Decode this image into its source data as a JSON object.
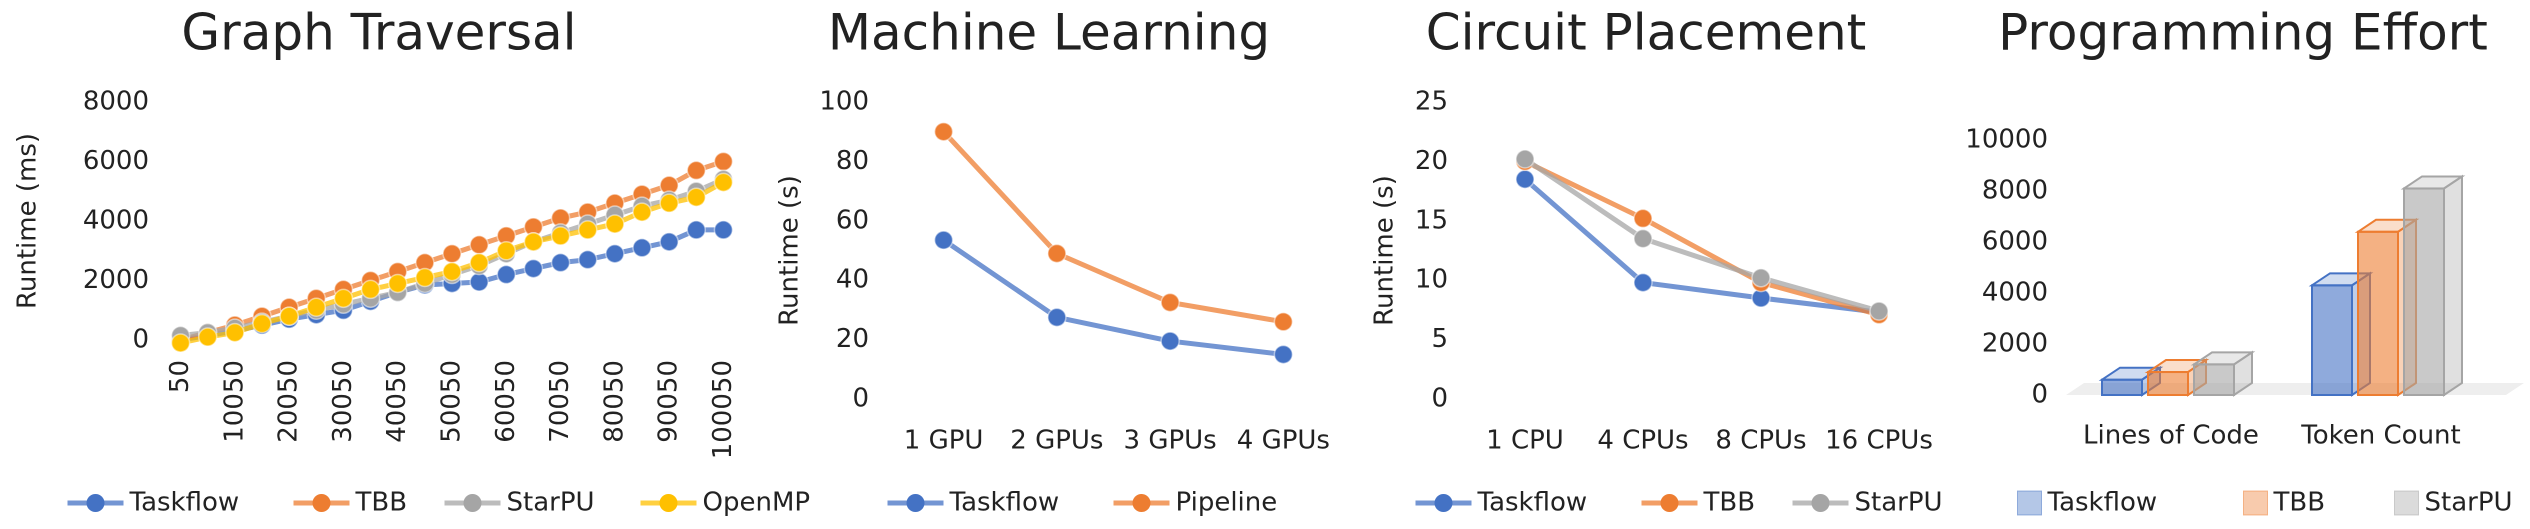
{
  "chart_data": [
    {
      "type": "line",
      "title": "Graph Traversal",
      "y_label": "Runtime (ms)",
      "categories": [
        "50",
        null,
        "10050",
        null,
        "20050",
        null,
        "30050",
        null,
        "40050",
        null,
        "50050",
        null,
        "60050",
        null,
        "70050",
        null,
        "80050",
        null,
        "90050",
        null,
        "100050"
      ],
      "series": [
        {
          "name": "Taskflow",
          "color": "#4472c4",
          "values": [
            0,
            150,
            300,
            500,
            700,
            850,
            1000,
            1300,
            1600,
            1850,
            1900,
            1950,
            2200,
            2400,
            2600,
            2700,
            2900,
            3100,
            3300,
            3700,
            3700
          ]
        },
        {
          "name": "TBB",
          "color": "#ed7d31",
          "values": [
            0,
            250,
            500,
            800,
            1100,
            1400,
            1700,
            2000,
            2300,
            2600,
            2900,
            3200,
            3500,
            3800,
            4100,
            4300,
            4600,
            4900,
            5200,
            5700,
            6000
          ]
        },
        {
          "name": "StarPU",
          "color": "#a5a5a5",
          "values": [
            150,
            250,
            400,
            600,
            800,
            1000,
            1200,
            1400,
            1600,
            1900,
            2200,
            2500,
            2900,
            3300,
            3600,
            3900,
            4200,
            4500,
            4700,
            5000,
            5400
          ]
        },
        {
          "name": "OpenMP",
          "color": "#ffc000",
          "values": [
            -100,
            100,
            250,
            550,
            800,
            1100,
            1400,
            1700,
            1900,
            2100,
            2300,
            2600,
            3000,
            3300,
            3500,
            3700,
            3900,
            4300,
            4600,
            4800,
            5300
          ]
        }
      ],
      "ylim": [
        0,
        8000
      ],
      "yticks": [
        0,
        2000,
        4000,
        6000,
        8000
      ],
      "grid": false,
      "legend": "bottom"
    },
    {
      "type": "line",
      "title": "Machine Learning",
      "y_label": "Runtime (s)",
      "categories": [
        "1 GPU",
        "2 GPUs",
        "3 GPUs",
        "4 GPUs"
      ],
      "series": [
        {
          "name": "Taskflow",
          "color": "#4472c4",
          "values": [
            53.5,
            27.5,
            19.5,
            15
          ]
        },
        {
          "name": "Pipeline",
          "color": "#ed7d31",
          "values": [
            90,
            49,
            32.5,
            26
          ]
        }
      ],
      "ylim": [
        0,
        100
      ],
      "yticks": [
        0,
        20,
        40,
        60,
        80,
        100
      ],
      "grid": false,
      "legend": "bottom"
    },
    {
      "type": "line",
      "title": "Circuit Placement",
      "y_label": "Runtime (s)",
      "categories": [
        "1 CPU",
        "4 CPUs",
        "8 CPUs",
        "16 CPUs"
      ],
      "series": [
        {
          "name": "Taskflow",
          "color": "#4472c4",
          "values": [
            18.5,
            9.8,
            8.5,
            7.3
          ]
        },
        {
          "name": "TBB",
          "color": "#ed7d31",
          "values": [
            20,
            15.2,
            9.8,
            7.1
          ]
        },
        {
          "name": "StarPU",
          "color": "#a5a5a5",
          "values": [
            20.2,
            13.5,
            10.2,
            7.4
          ]
        }
      ],
      "ylim": [
        0,
        25
      ],
      "yticks": [
        0,
        5,
        10,
        15,
        20,
        25
      ],
      "grid": false,
      "legend": "bottom"
    },
    {
      "type": "bar3d",
      "title": "Programming Effort",
      "categories": [
        "Lines of Code",
        "Token Count"
      ],
      "series": [
        {
          "name": "Taskflow",
          "color": "#4472c4",
          "values": [
            600,
            4300
          ]
        },
        {
          "name": "TBB",
          "color": "#ed7d31",
          "values": [
            900,
            6400
          ]
        },
        {
          "name": "StarPU",
          "color": "#a5a5a5",
          "values": [
            1200,
            8100
          ]
        }
      ],
      "ylim": [
        0,
        10000
      ],
      "yticks": [
        0,
        2000,
        4000,
        6000,
        8000,
        10000
      ],
      "grid": false,
      "legend": "bottom"
    }
  ]
}
